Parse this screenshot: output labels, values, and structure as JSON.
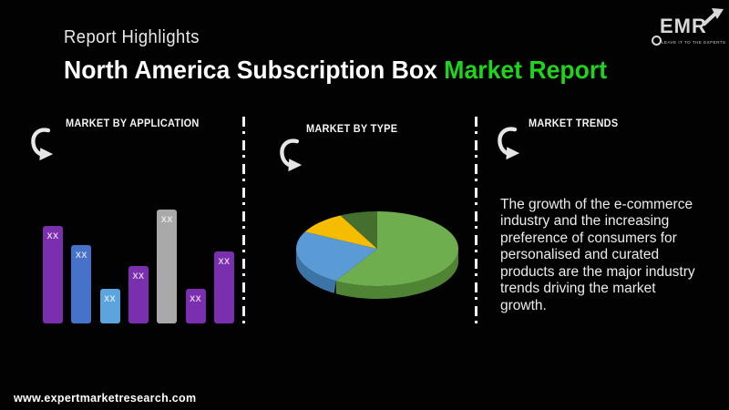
{
  "page": {
    "eyebrow": "Report Highlights",
    "title_white": "North America Subscription Box ",
    "title_green": "Market Report",
    "accent_green": "#1fd41f",
    "background": "#020202",
    "footer_url": "www.expertmarketresearch.com"
  },
  "logo": {
    "text": "EMR",
    "tagline": "Leave it to the Experts",
    "arrow_icon": "up-right-arrow",
    "lens_icon": "magnifier-circle"
  },
  "sections": [
    {
      "label": "MARKET BY APPLICATION"
    },
    {
      "label": "MARKET BY TYPE"
    },
    {
      "label": "MARKET TRENDS"
    }
  ],
  "trends": {
    "text": "The growth of the e-commerce industry and the increasing preference of consumers for personalised and curated products are the major industry trends driving the market growth."
  },
  "chart_data": [
    {
      "type": "bar",
      "title": "MARKET BY APPLICATION",
      "values": [
        107,
        86,
        38,
        63,
        125,
        38,
        79
      ],
      "value_labels": [
        "XX",
        "XX",
        "XX",
        "XX",
        "XX",
        "XX",
        "XX"
      ],
      "bar_colors": [
        "#7a2fae",
        "#4673c9",
        "#5ba4de",
        "#7a2fae",
        "#a9a9a9",
        "#7a2fae",
        "#7a2fae"
      ],
      "ylim": [
        0,
        135
      ],
      "axes_visible": false,
      "grid": false,
      "legend_position": "none"
    },
    {
      "type": "pie",
      "title": "MARKET BY TYPE",
      "values": [
        58.5,
        24,
        10,
        7.5
      ],
      "colors": [
        "#6fae4e",
        "#5b9bd5",
        "#f6bc00",
        "#456f2e"
      ],
      "side_colors": [
        "#4f8434",
        "#3d74a8",
        "#bd8f00",
        "#33531f"
      ],
      "style": "3d",
      "start_angle_deg": 0,
      "clockwise": true,
      "legend_position": "none"
    }
  ]
}
